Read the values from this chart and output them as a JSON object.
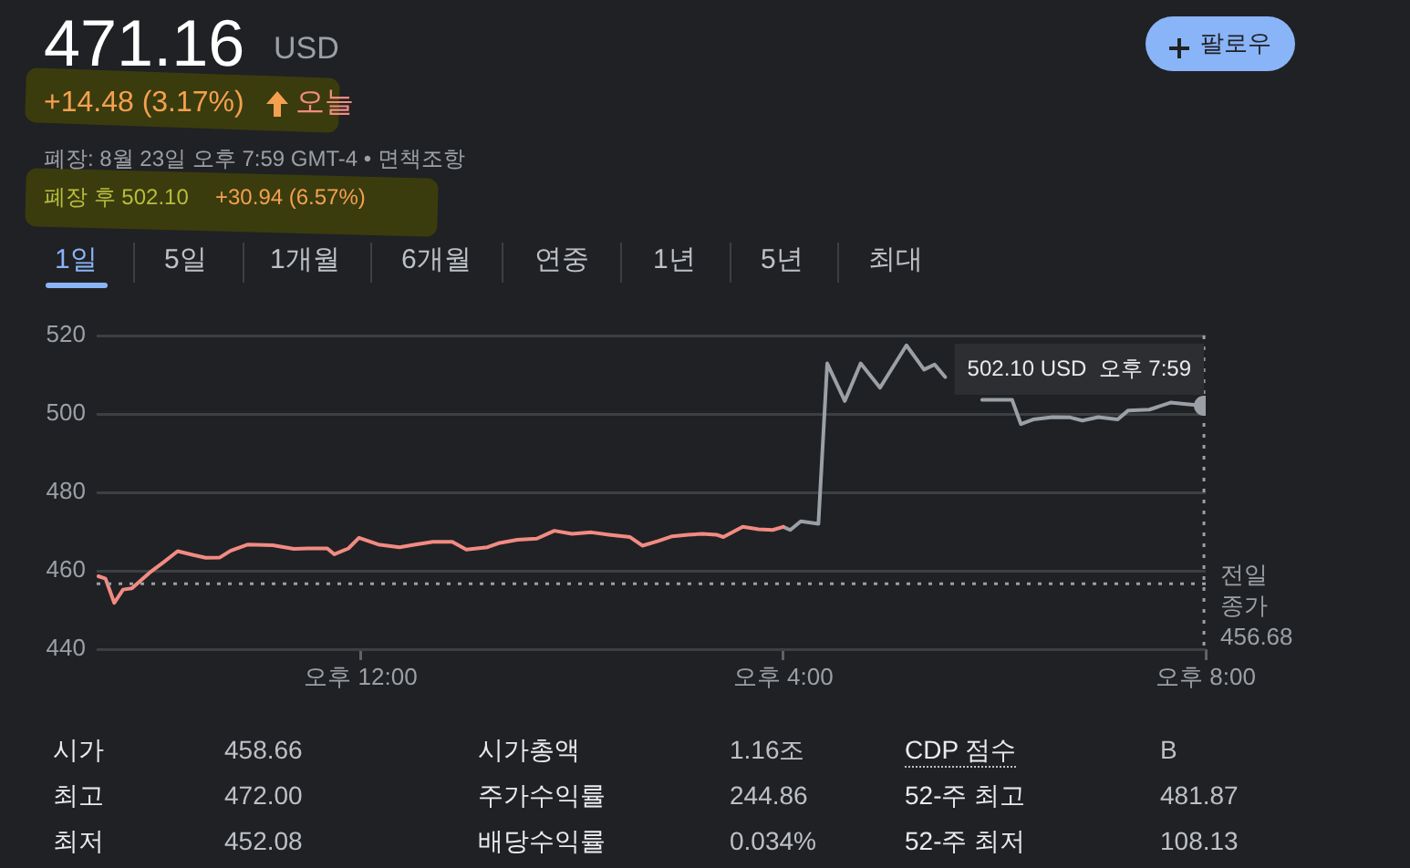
{
  "chart_data": {
    "type": "line",
    "title": "471.16",
    "subtitle": "USD",
    "xlim": [
      "--08-23T09:30",
      "--08-23T20:00"
    ],
    "xticks": [
      {
        "value": "--08-23T12:00",
        "label": "오후 12:00"
      },
      {
        "value": "--08-23T16:00",
        "label": "오후 4:00"
      },
      {
        "value": "--08-23T20:00",
        "label": "오후 8:00"
      }
    ],
    "ylim": [
      440,
      520
    ],
    "yticks": [
      440,
      460,
      480,
      500,
      520
    ],
    "grid": "y",
    "series": [
      {
        "color": "#f28b82",
        "x": [
          "--08-23T09:31",
          "--08-23T09:35",
          "--08-23T09:40",
          "--08-23T09:45",
          "--08-23T09:50",
          "--08-23T10:00",
          "--08-23T10:08",
          "--08-23T10:16",
          "--08-23T10:25",
          "--08-23T10:32",
          "--08-23T10:40",
          "--08-23T10:46",
          "--08-23T10:56",
          "--08-23T11:10",
          "--08-23T11:22",
          "--08-23T11:30",
          "--08-23T11:41",
          "--08-23T11:45",
          "--08-23T11:53",
          "--08-23T11:59",
          "--08-23T12:10",
          "--08-23T12:22",
          "--08-23T12:31",
          "--08-23T12:41",
          "--08-23T12:52",
          "--08-23T13:00",
          "--08-23T13:12",
          "--08-23T13:19",
          "--08-23T13:29",
          "--08-23T13:40",
          "--08-23T13:50",
          "--08-23T14:00",
          "--08-23T14:11",
          "--08-23T14:21",
          "--08-23T14:33",
          "--08-23T14:40",
          "--08-23T14:49",
          "--08-23T14:57",
          "--08-23T15:06",
          "--08-23T15:14",
          "--08-23T15:22",
          "--08-23T15:26",
          "--08-23T15:37",
          "--08-23T15:46",
          "--08-23T15:54",
          "--08-23T16:00"
        ],
        "values": [
          458.6,
          458.0,
          451.8,
          455.2,
          455.5,
          459.5,
          462.2,
          465.0,
          464.0,
          463.3,
          463.4,
          465.1,
          466.7,
          466.5,
          465.6,
          465.7,
          465.7,
          464.2,
          465.7,
          468.4,
          466.7,
          466.0,
          466.7,
          467.4,
          467.4,
          465.4,
          466.0,
          467.1,
          467.9,
          468.2,
          470.2,
          469.4,
          469.8,
          469.2,
          468.6,
          466.4,
          467.6,
          468.8,
          469.2,
          469.4,
          469.2,
          468.6,
          471.2,
          470.6,
          470.4,
          471.2
        ]
      },
      {
        "color": "#9aa0a6",
        "x": [
          "--08-23T16:00",
          "--08-23T16:04",
          "--08-23T16:10",
          "--08-23T16:20",
          "--08-23T16:25",
          "--08-23T16:35",
          "--08-23T16:44",
          "--08-23T16:55",
          "--08-23T17:10",
          "--08-23T17:20",
          "--08-23T17:26",
          "--08-23T17:32",
          "--08-23T17:42",
          "--08-23T17:53",
          "--08-23T18:10",
          "--08-23T18:15",
          "--08-23T18:22",
          "--08-23T18:33",
          "--08-23T18:43",
          "--08-23T18:50",
          "--08-23T18:59",
          "--08-23T19:10",
          "--08-23T19:16",
          "--08-23T19:28",
          "--08-23T19:40",
          "--08-23T19:49",
          "--08-23T19:59"
        ],
        "values": [
          471.2,
          470.4,
          472.6,
          472.0,
          512.9,
          503.3,
          512.9,
          506.7,
          517.5,
          511.3,
          512.6,
          509.4,
          null,
          503.6,
          503.6,
          497.4,
          498.6,
          499.2,
          499.1,
          498.3,
          499.2,
          498.6,
          500.9,
          501.1,
          502.9,
          502.5,
          502.1
        ]
      },
      {
        "type": "scatter",
        "color": "#9aa0a6",
        "x": [
          "--08-23T19:59"
        ],
        "values": [
          502.1
        ]
      }
    ],
    "ref_lines": [
      {
        "axis": "y",
        "value": 456.68,
        "label": "전일\n종가\n456.68",
        "line_style": "dotted",
        "color": "#9aa0a6"
      },
      {
        "axis": "x",
        "value": "--08-23T19:59",
        "line_style": "dotted",
        "color": "#9aa0a6"
      }
    ],
    "annotations": [
      {
        "text": "502.10 USD  오후 7:59",
        "x": "--08-23T19:59",
        "y": 502.1
      },
      "+14.48 (3.17%)",
      "오늘",
      "폐장: 8월 23일 오후 7:59 GMT-4 • 면책조항",
      "폐장 후 502.10",
      "+30.94 (6.57%)",
      "팔로우",
      "1일",
      "5일",
      "1개월",
      "6개월",
      "연중",
      "1년",
      "5년",
      "최대",
      "시가",
      "458.66",
      "시가총액",
      "1.16조",
      "CDP 점수",
      "B",
      "최고",
      "472.00",
      "주가수익률",
      "244.86",
      "52-주 최고",
      "481.87",
      "최저",
      "452.08",
      "배당수익률",
      "0.034%",
      "52-주 최저",
      "108.13"
    ]
  }
}
